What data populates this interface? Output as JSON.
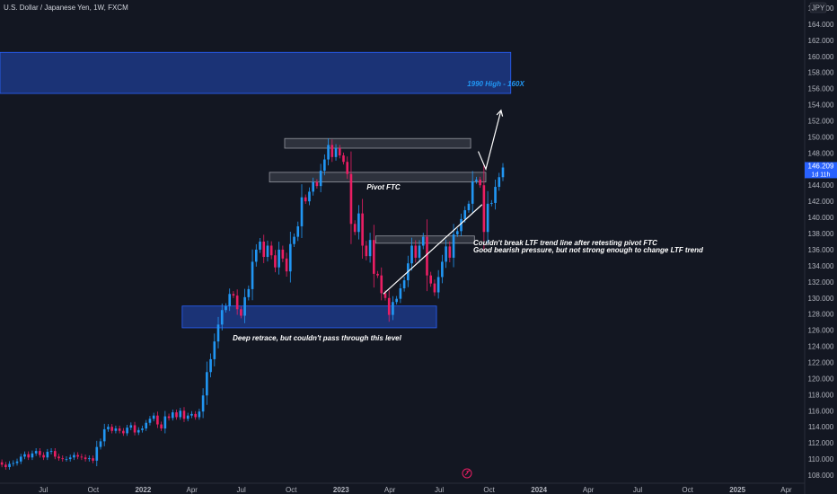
{
  "header": {
    "title": "U.S. Dollar / Japanese Yen, 1W, FXCM",
    "currency_label": "JPY"
  },
  "chart_data": {
    "type": "candlestick",
    "ylim": [
      107,
      167
    ],
    "y_ticks": [
      108,
      110,
      112,
      114,
      116,
      118,
      120,
      122,
      124,
      126,
      128,
      130,
      132,
      134,
      136,
      138,
      140,
      142,
      144,
      146,
      148,
      150,
      152,
      154,
      156,
      158,
      160,
      162,
      164,
      166
    ],
    "y_tick_labels": [
      "108.000",
      "110.000",
      "112.000",
      "114.000",
      "116.000",
      "118.000",
      "120.000",
      "122.000",
      "124.000",
      "126.000",
      "128.000",
      "130.000",
      "132.000",
      "134.000",
      "136.000",
      "138.000",
      "140.000",
      "142.000",
      "144.000",
      "146.000",
      "148.000",
      "150.000",
      "152.000",
      "154.000",
      "156.000",
      "158.000",
      "160.000",
      "162.000",
      "164.000",
      "166.000"
    ],
    "x_range": [
      "2021-04-12",
      "2025-05-05"
    ],
    "x_ticks": [
      {
        "label": "Jul",
        "date": "2021-07-01",
        "year": false
      },
      {
        "label": "Oct",
        "date": "2021-10-01",
        "year": false
      },
      {
        "label": "2022",
        "date": "2022-01-01",
        "year": true
      },
      {
        "label": "Apr",
        "date": "2022-04-01",
        "year": false
      },
      {
        "label": "Jul",
        "date": "2022-07-01",
        "year": false
      },
      {
        "label": "Oct",
        "date": "2022-10-01",
        "year": false
      },
      {
        "label": "2023",
        "date": "2023-01-01",
        "year": true
      },
      {
        "label": "Apr",
        "date": "2023-04-01",
        "year": false
      },
      {
        "label": "Jul",
        "date": "2023-07-01",
        "year": false
      },
      {
        "label": "Oct",
        "date": "2023-10-01",
        "year": false
      },
      {
        "label": "2024",
        "date": "2024-01-01",
        "year": true
      },
      {
        "label": "Apr",
        "date": "2024-04-01",
        "year": false
      },
      {
        "label": "Jul",
        "date": "2024-07-01",
        "year": false
      },
      {
        "label": "Oct",
        "date": "2024-10-01",
        "year": false
      },
      {
        "label": "2025",
        "date": "2025-01-01",
        "year": true
      },
      {
        "label": "Apr",
        "date": "2025-04-01",
        "year": false
      }
    ],
    "first_candle_date": "2021-04-12",
    "candle_interval_days": 7,
    "closes": [
      109.3,
      109.0,
      109.4,
      109.5,
      109.7,
      110.3,
      110.6,
      110.2,
      110.7,
      111.0,
      110.5,
      110.2,
      110.9,
      111.0,
      110.3,
      110.1,
      110.0,
      110.0,
      110.2,
      110.5,
      110.3,
      110.2,
      110.0,
      110.1,
      109.8,
      111.5,
      112.2,
      113.7,
      114.0,
      113.5,
      113.8,
      113.5,
      113.2,
      113.9,
      114.2,
      113.3,
      113.6,
      113.8,
      114.5,
      115.0,
      115.4,
      114.3,
      113.8,
      115.3,
      115.1,
      115.8,
      115.2,
      116.0,
      115.0,
      115.4,
      115.6,
      115.2,
      115.9,
      117.9,
      120.8,
      122.4,
      124.6,
      126.7,
      128.5,
      129.0,
      130.5,
      130.3,
      128.6,
      127.8,
      130.1,
      131.1,
      134.5,
      136.0,
      137.0,
      135.1,
      136.5,
      135.3,
      133.8,
      136.0,
      134.9,
      133.3,
      136.7,
      137.6,
      138.9,
      142.5,
      142.0,
      143.2,
      144.4,
      143.9,
      145.8,
      147.2,
      149.0,
      147.5,
      148.6,
      147.7,
      146.9,
      145.4,
      139.2,
      138.2,
      140.5,
      136.5,
      135.2,
      137.2,
      133.0,
      132.8,
      130.6,
      130.0,
      127.9,
      129.5,
      129.9,
      131.2,
      132.2,
      134.3,
      136.5,
      135.0,
      136.5,
      137.6,
      132.8,
      131.8,
      130.7,
      132.6,
      134.5,
      136.4,
      135.0,
      137.9,
      138.3,
      139.8,
      140.9,
      141.7,
      144.5,
      144.7,
      144.0,
      138.2,
      141.7,
      141.8,
      143.8,
      145.0,
      146.2
    ],
    "open_start": 109.6,
    "annotations": [
      {
        "text": "1990 High - 160X"
      },
      {
        "text": "Pivot FTC"
      },
      {
        "text": "Couldn't break LTF trend line after retesting pivot FTC"
      },
      {
        "text": "Good bearish pressure, but not strong enough to change LTF trend"
      },
      {
        "text": "Deep retrace, but couldn't pass through this level"
      }
    ],
    "zones": [
      {
        "name": "1990-high-zone",
        "y_range": [
          155.4,
          160.5
        ],
        "x_range": [
          "2021-04-12",
          "2023-11-10"
        ]
      },
      {
        "name": "top-zone",
        "y_range": [
          148.6,
          149.8
        ],
        "x_range": [
          "2022-09-19",
          "2023-08-28"
        ]
      },
      {
        "name": "pivot-zone",
        "y_range": [
          144.4,
          145.6
        ],
        "x_range": [
          "2022-08-22",
          "2023-09-25"
        ]
      },
      {
        "name": "mid-zone",
        "y_range": [
          136.8,
          137.7
        ],
        "x_range": [
          "2023-03-06",
          "2023-09-04"
        ]
      },
      {
        "name": "low-zone",
        "y_range": [
          126.3,
          129.0
        ],
        "x_range": [
          "2022-03-14",
          "2023-06-26"
        ]
      }
    ],
    "trendline": {
      "from": [
        "2023-03-20",
        130.5
      ],
      "to": [
        "2023-09-18",
        141.6
      ]
    },
    "projection": [
      [
        "2023-09-11",
        148.2
      ],
      [
        "2023-09-25",
        146.0
      ],
      [
        "2023-10-23",
        153.3
      ]
    ],
    "last_price": {
      "value": "146.209",
      "countdown": "1d 11h"
    }
  }
}
